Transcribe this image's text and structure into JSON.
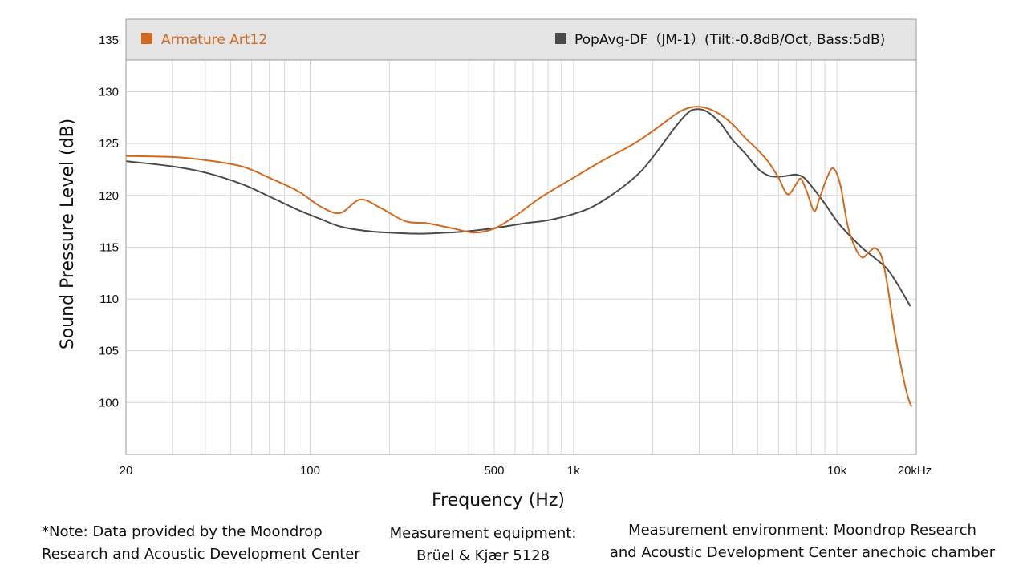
{
  "colors": {
    "series1": "#D2691E",
    "series2": "#4a4a4a",
    "grid": "#d6d6d6",
    "legend_bg": "#e4e4e4",
    "frame": "#9a9a9a"
  },
  "chart_data": {
    "type": "line",
    "xlabel": "Frequency (Hz)",
    "ylabel": "Sound Pressure Level (dB)",
    "xscale": "log",
    "xlim": [
      20,
      20000
    ],
    "ylim": [
      95,
      137
    ],
    "x_ticks": [
      {
        "value": 20,
        "label": "20"
      },
      {
        "value": 100,
        "label": "100"
      },
      {
        "value": 500,
        "label": "500"
      },
      {
        "value": 1000,
        "label": "1k"
      },
      {
        "value": 10000,
        "label": "10k"
      },
      {
        "value": 20000,
        "label": "20kHz"
      }
    ],
    "y_ticks": [
      100,
      105,
      110,
      115,
      120,
      125,
      130,
      135
    ],
    "grid": true,
    "legend_position": "top",
    "series": [
      {
        "name": "Armature Art12",
        "color": "#D2691E",
        "points": [
          [
            20,
            123.8
          ],
          [
            30,
            123.7
          ],
          [
            40,
            123.4
          ],
          [
            55,
            122.8
          ],
          [
            70,
            121.7
          ],
          [
            90,
            120.4
          ],
          [
            110,
            118.9
          ],
          [
            130,
            118.3
          ],
          [
            155,
            119.6
          ],
          [
            185,
            118.8
          ],
          [
            230,
            117.5
          ],
          [
            280,
            117.3
          ],
          [
            350,
            116.8
          ],
          [
            420,
            116.4
          ],
          [
            500,
            116.8
          ],
          [
            600,
            118.0
          ],
          [
            750,
            119.8
          ],
          [
            1000,
            121.7
          ],
          [
            1300,
            123.4
          ],
          [
            1700,
            125.0
          ],
          [
            2100,
            126.6
          ],
          [
            2500,
            128.0
          ],
          [
            2800,
            128.5
          ],
          [
            3100,
            128.5
          ],
          [
            3500,
            128.0
          ],
          [
            4000,
            126.9
          ],
          [
            4500,
            125.5
          ],
          [
            5000,
            124.4
          ],
          [
            5500,
            123.2
          ],
          [
            6000,
            121.7
          ],
          [
            6500,
            120.1
          ],
          [
            7000,
            121.1
          ],
          [
            7300,
            121.6
          ],
          [
            7700,
            120.3
          ],
          [
            8200,
            118.5
          ],
          [
            8600,
            119.8
          ],
          [
            9200,
            121.8
          ],
          [
            9700,
            122.6
          ],
          [
            10300,
            121.0
          ],
          [
            11000,
            117.0
          ],
          [
            11800,
            114.8
          ],
          [
            12500,
            114.0
          ],
          [
            13200,
            114.5
          ],
          [
            14000,
            114.9
          ],
          [
            14800,
            114.0
          ],
          [
            15500,
            111.5
          ],
          [
            16500,
            107.0
          ],
          [
            17500,
            103.5
          ],
          [
            18500,
            100.7
          ],
          [
            19200,
            99.6
          ]
        ]
      },
      {
        "name": "PopAvg-DF（JM-1）(Tilt:-0.8dB/Oct, Bass:5dB)",
        "color": "#4a4a4a",
        "points": [
          [
            20,
            123.3
          ],
          [
            30,
            122.8
          ],
          [
            40,
            122.2
          ],
          [
            55,
            121.1
          ],
          [
            70,
            119.9
          ],
          [
            90,
            118.6
          ],
          [
            110,
            117.7
          ],
          [
            130,
            117.0
          ],
          [
            160,
            116.6
          ],
          [
            200,
            116.4
          ],
          [
            260,
            116.3
          ],
          [
            330,
            116.4
          ],
          [
            420,
            116.6
          ],
          [
            520,
            116.9
          ],
          [
            650,
            117.3
          ],
          [
            800,
            117.6
          ],
          [
            1000,
            118.2
          ],
          [
            1200,
            119.0
          ],
          [
            1500,
            120.6
          ],
          [
            1800,
            122.3
          ],
          [
            2100,
            124.4
          ],
          [
            2400,
            126.4
          ],
          [
            2700,
            127.9
          ],
          [
            2900,
            128.3
          ],
          [
            3200,
            128.1
          ],
          [
            3600,
            127.0
          ],
          [
            4000,
            125.4
          ],
          [
            4500,
            124.0
          ],
          [
            5000,
            122.6
          ],
          [
            5500,
            121.9
          ],
          [
            6000,
            121.8
          ],
          [
            6500,
            121.9
          ],
          [
            7000,
            122.0
          ],
          [
            7500,
            121.7
          ],
          [
            8000,
            120.9
          ],
          [
            9000,
            119.2
          ],
          [
            10000,
            117.5
          ],
          [
            11000,
            116.3
          ],
          [
            12500,
            114.9
          ],
          [
            14000,
            113.9
          ],
          [
            15500,
            112.9
          ],
          [
            17000,
            111.4
          ],
          [
            19000,
            109.3
          ]
        ]
      }
    ]
  },
  "notes": {
    "left_line1": "*Note: Data provided by the Moondrop",
    "left_line2": "Research and Acoustic Development Center",
    "mid_line1": "Measurement equipment:",
    "mid_line2": "Brüel & Kjær 5128",
    "right_line1": "Measurement environment: Moondrop Research",
    "right_line2": "and Acoustic Development Center anechoic chamber"
  }
}
